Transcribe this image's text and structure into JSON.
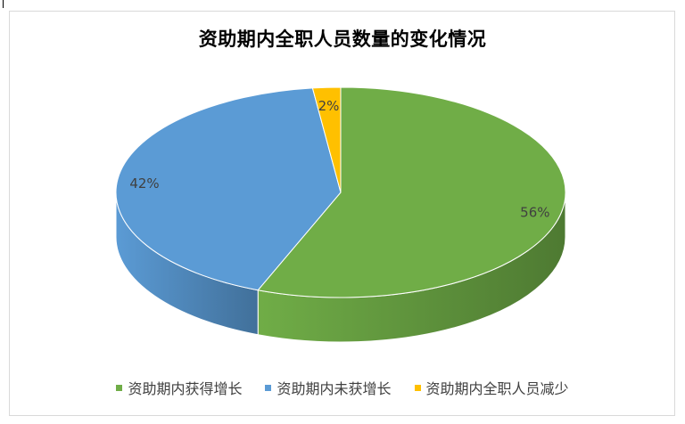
{
  "chart_data": {
    "type": "pie",
    "title": "资助期内全职人员数量的变化情况",
    "slices": [
      {
        "label": "资助期内获得增长",
        "value": 56,
        "data_label": "56%",
        "color": "#70AD47",
        "side_color": "#4E7A32"
      },
      {
        "label": "资助期内未获增长",
        "value": 42,
        "data_label": "42%",
        "color": "#5B9BD5",
        "side_color": "#41709A"
      },
      {
        "label": "资助期内全职人员减少",
        "value": 2,
        "data_label": "2%",
        "color": "#FFC000",
        "side_color": "#B88A00"
      }
    ],
    "legend_position": "bottom",
    "three_d": true
  }
}
